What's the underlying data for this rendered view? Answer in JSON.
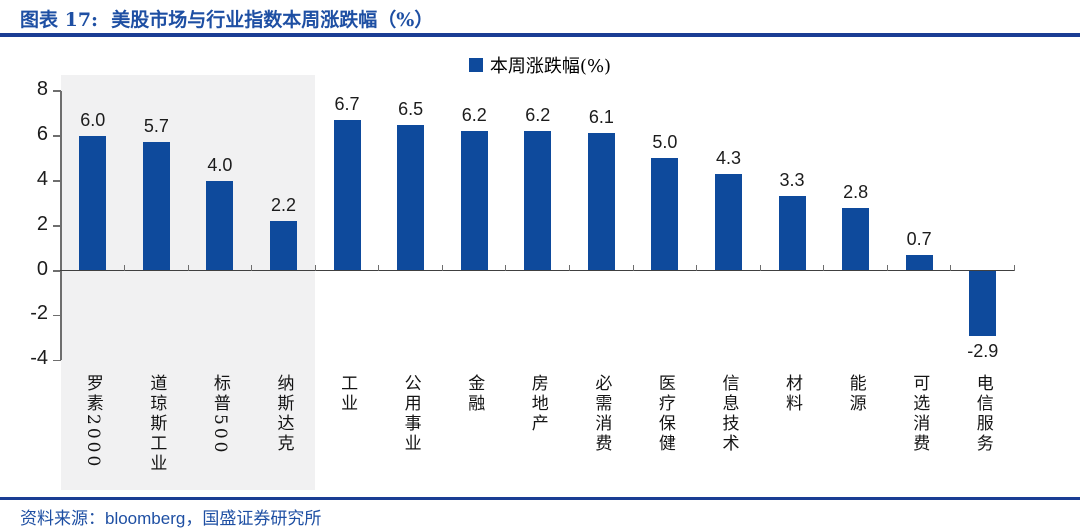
{
  "header": {
    "title": "图表 17:  美股市场与行业指数本周涨跌幅（%）"
  },
  "chart": {
    "legend_label": "本周涨跌幅(%)"
  },
  "footer": {
    "source_prefix": "资料来源：",
    "source_name": "bloomberg",
    "source_suffix": "，国盛证券研究所"
  },
  "colors": {
    "bar": "#0E4A9C",
    "rule": "#1A3D94",
    "blue_text": "#1E4FA3",
    "highlight_background": "#F1F1F2",
    "axis": "#6E6E6E",
    "zero_line": "#404040"
  },
  "chart_data": {
    "type": "bar",
    "title": "美股市场与行业指数本周涨跌幅（%）",
    "legend": [
      "本周涨跌幅(%)"
    ],
    "categories": [
      "罗素2000",
      "道琼斯工业",
      "标普500",
      "纳斯达克",
      "工业",
      "公用事业",
      "金融",
      "房地产",
      "必需消费",
      "医疗保健",
      "信息技术",
      "材料",
      "能源",
      "可选消费",
      "电信服务"
    ],
    "values": [
      6.0,
      5.7,
      4.0,
      2.2,
      6.7,
      6.5,
      6.2,
      6.2,
      6.1,
      5.0,
      4.3,
      3.3,
      2.8,
      0.7,
      -2.9
    ],
    "ylim": [
      -4,
      8
    ],
    "yticks": [
      8,
      6,
      4,
      2,
      0,
      -2,
      -4
    ],
    "grid": false,
    "legend_position": "top-center",
    "highlight_first_n": 4,
    "highlight_note": "市场指数（罗素2000/道琼斯工业/标普500/纳斯达克）带灰色底色，其余为行业指数"
  }
}
